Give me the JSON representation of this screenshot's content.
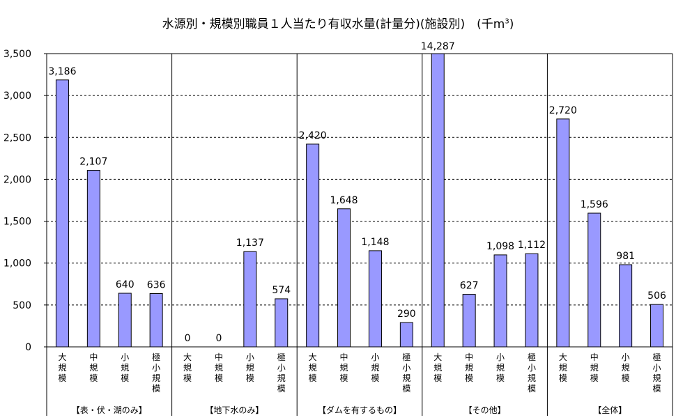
{
  "chart_data": {
    "type": "bar",
    "title_text": "水源別・規模別職員１人当たり有収水量(計量分)(施設別)　(千m",
    "title_sup": "3",
    "title_close": ")",
    "ylim": [
      0,
      3500
    ],
    "yticks": [
      "0",
      "500",
      "1,000",
      "1,500",
      "2,000",
      "2,500",
      "3,000",
      "3,500"
    ],
    "ytick_values": [
      0,
      500,
      1000,
      1500,
      2000,
      2500,
      3000,
      3500
    ],
    "grid": "dashed horizontal",
    "bar_color": "#9999ff",
    "categories": [
      "大規模",
      "中規模",
      "小規模",
      "極小規模"
    ],
    "groups": [
      {
        "label": "【表・伏・湖のみ】",
        "values": [
          3186,
          2107,
          640,
          636
        ],
        "value_labels": [
          "3,186",
          "2,107",
          "640",
          "636"
        ]
      },
      {
        "label": "【地下水のみ】",
        "values": [
          0,
          0,
          1137,
          574
        ],
        "value_labels": [
          "0",
          "0",
          "1,137",
          "574"
        ]
      },
      {
        "label": "【ダムを有するもの】",
        "values": [
          2420,
          1648,
          1148,
          290
        ],
        "value_labels": [
          "2,420",
          "1,648",
          "1,148",
          "290"
        ]
      },
      {
        "label": "【その他】",
        "values": [
          14287,
          627,
          1098,
          1112
        ],
        "value_labels": [
          "14,287",
          "627",
          "1,098",
          "1,112"
        ]
      },
      {
        "label": "【全体】",
        "values": [
          2720,
          1596,
          981,
          506
        ],
        "value_labels": [
          "2,720",
          "1,596",
          "981",
          "506"
        ]
      }
    ]
  }
}
